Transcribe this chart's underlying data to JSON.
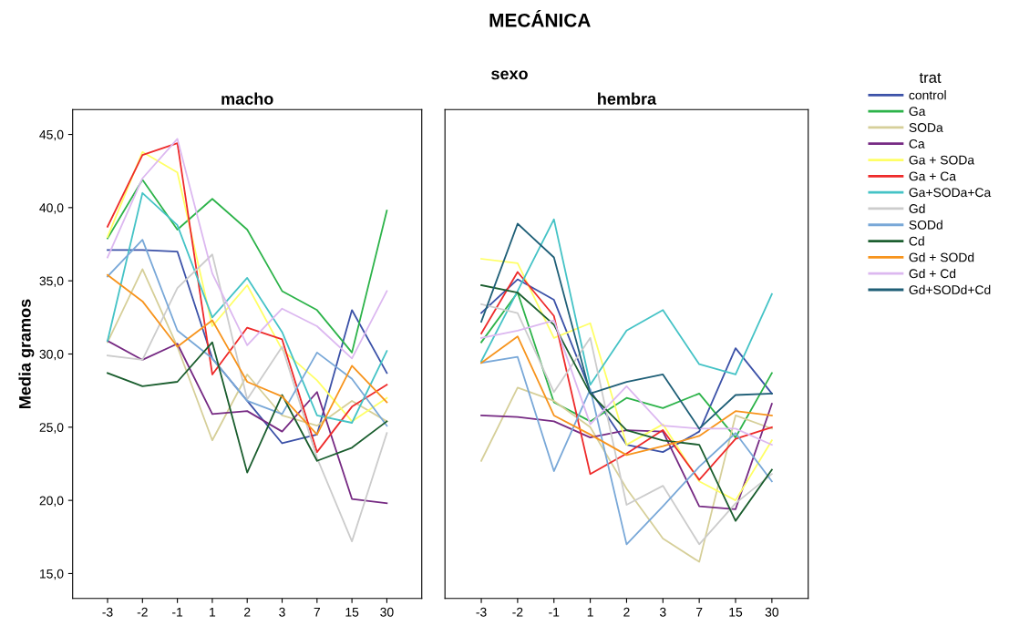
{
  "chart_data": [
    {
      "type": "line",
      "title": "macho",
      "ylabel": "Media gramos",
      "annotations": [
        "MECÁNICA",
        "sexo"
      ],
      "categories": [
        "-3",
        "-2",
        "-1",
        "1",
        "2",
        "3",
        "7",
        "15",
        "30"
      ],
      "ylim": [
        13.3,
        46.7
      ],
      "yticks": [
        {
          "value": 15,
          "label": "15,0"
        },
        {
          "value": 20,
          "label": "20,0"
        },
        {
          "value": 25,
          "label": "25,0"
        },
        {
          "value": 30,
          "label": "30,0"
        },
        {
          "value": 35,
          "label": "35,0"
        },
        {
          "value": 40,
          "label": "40,0"
        },
        {
          "value": 45,
          "label": "45,0"
        }
      ],
      "grid": false,
      "legend": false,
      "series": [
        {
          "color": "#3c52a8",
          "values": [
            37.1,
            37.1,
            37.0,
            29.7,
            26.8,
            23.9,
            24.5,
            33.0,
            28.7
          ]
        },
        {
          "color": "#2db34a",
          "values": [
            37.9,
            41.9,
            38.5,
            40.6,
            38.5,
            34.3,
            33.0,
            30.1,
            39.8
          ]
        },
        {
          "color": "#d6cf99",
          "values": [
            30.8,
            35.8,
            30.5,
            24.1,
            28.6,
            25.8,
            25.1,
            26.8,
            25.4
          ]
        },
        {
          "color": "#762a83",
          "values": [
            30.9,
            29.6,
            30.7,
            25.9,
            26.1,
            24.7,
            27.4,
            20.1,
            19.8
          ]
        },
        {
          "color": "#ffff66",
          "values": [
            38.0,
            43.8,
            42.4,
            31.9,
            34.7,
            30.3,
            28.2,
            25.4,
            27.0
          ]
        },
        {
          "color": "#ee2b2b",
          "values": [
            38.7,
            43.6,
            44.4,
            28.6,
            31.8,
            31.0,
            23.3,
            26.4,
            27.9
          ]
        },
        {
          "color": "#45c3c6",
          "values": [
            30.9,
            41.0,
            38.8,
            32.5,
            35.2,
            31.5,
            25.8,
            25.3,
            30.2
          ]
        },
        {
          "color": "#cccccc",
          "values": [
            29.9,
            29.6,
            34.5,
            36.8,
            26.9,
            30.5,
            22.9,
            17.2,
            24.6
          ]
        },
        {
          "color": "#79a8d8",
          "values": [
            35.3,
            37.8,
            31.6,
            29.7,
            26.8,
            25.9,
            30.1,
            28.3,
            25.1
          ]
        },
        {
          "color": "#1b5e2f",
          "values": [
            28.7,
            27.8,
            28.1,
            30.8,
            21.9,
            27.2,
            22.7,
            23.6,
            25.4
          ]
        },
        {
          "color": "#f7941d",
          "values": [
            35.4,
            33.6,
            30.5,
            32.3,
            28.1,
            27.1,
            24.5,
            29.2,
            26.7
          ]
        },
        {
          "color": "#dcb8f0",
          "values": [
            36.6,
            42.0,
            44.7,
            35.5,
            30.6,
            33.1,
            31.9,
            29.7,
            34.3
          ]
        }
      ]
    },
    {
      "type": "line",
      "title": "hembra",
      "legend_title": "trat",
      "tick_labels": "x",
      "categories": [
        "-3",
        "-2",
        "-1",
        "1",
        "2",
        "3",
        "7",
        "15",
        "30"
      ],
      "ylim": [
        13.3,
        46.7
      ],
      "yticks": [
        {
          "value": 15,
          "label": null
        },
        {
          "value": 20,
          "label": null
        },
        {
          "value": 25,
          "label": null
        },
        {
          "value": 30,
          "label": null
        },
        {
          "value": 35,
          "label": null
        },
        {
          "value": 40,
          "label": null
        },
        {
          "value": 45,
          "label": null
        }
      ],
      "grid": false,
      "legend": "right",
      "series": [
        {
          "name": "control",
          "color": "#3c52a8",
          "values": [
            32.8,
            35.1,
            33.7,
            27.5,
            23.8,
            23.3,
            24.7,
            30.4,
            27.3
          ]
        },
        {
          "name": "Ga",
          "color": "#2db34a",
          "values": [
            30.8,
            34.2,
            26.7,
            25.4,
            27.0,
            26.3,
            27.3,
            24.3,
            28.7
          ]
        },
        {
          "name": "SODa",
          "color": "#d6cf99",
          "values": [
            22.7,
            27.7,
            26.8,
            25.0,
            20.8,
            17.4,
            15.8,
            25.8,
            24.9
          ]
        },
        {
          "name": "Ca",
          "color": "#762a83",
          "values": [
            25.8,
            25.7,
            25.4,
            24.3,
            24.8,
            24.7,
            19.6,
            19.4,
            26.6
          ]
        },
        {
          "name": "Ga + SODa",
          "color": "#ffff66",
          "values": [
            36.5,
            36.2,
            31.1,
            32.1,
            23.8,
            25.2,
            21.3,
            20.0,
            24.1
          ]
        },
        {
          "name": "Ga + Ca",
          "color": "#ee2b2b",
          "values": [
            31.4,
            35.6,
            32.6,
            21.8,
            23.2,
            24.8,
            21.4,
            24.2,
            25.0
          ]
        },
        {
          "name": "Ga+SODa+Ca",
          "color": "#45c3c6",
          "values": [
            29.5,
            34.3,
            39.2,
            27.9,
            31.6,
            33.0,
            29.3,
            28.6,
            34.1
          ]
        },
        {
          "name": "Gd",
          "color": "#cccccc",
          "values": [
            33.4,
            32.8,
            27.4,
            31.1,
            19.7,
            21.0,
            17.0,
            19.8,
            21.8
          ]
        },
        {
          "name": "SODd",
          "color": "#79a8d8",
          "values": [
            29.4,
            29.8,
            22.0,
            27.6,
            17.0,
            19.6,
            22.3,
            24.6,
            21.3
          ]
        },
        {
          "name": "Cd",
          "color": "#1b5e2f",
          "values": [
            34.7,
            34.2,
            32.0,
            27.3,
            24.8,
            24.1,
            23.8,
            18.6,
            22.1
          ]
        },
        {
          "name": "Gd + SODd",
          "color": "#f7941d",
          "values": [
            29.4,
            31.2,
            25.8,
            24.5,
            23.1,
            23.7,
            24.4,
            26.1,
            25.8
          ]
        },
        {
          "name": "Gd + Cd",
          "color": "#dcb8f0",
          "values": [
            31.1,
            31.6,
            32.3,
            25.2,
            27.8,
            25.1,
            24.9,
            24.9,
            23.8
          ]
        },
        {
          "name": "Gd+SODd+Cd",
          "color": "#1f5f77",
          "values": [
            32.2,
            38.9,
            36.6,
            27.3,
            28.1,
            28.6,
            24.9,
            27.2,
            27.3
          ]
        }
      ]
    }
  ]
}
